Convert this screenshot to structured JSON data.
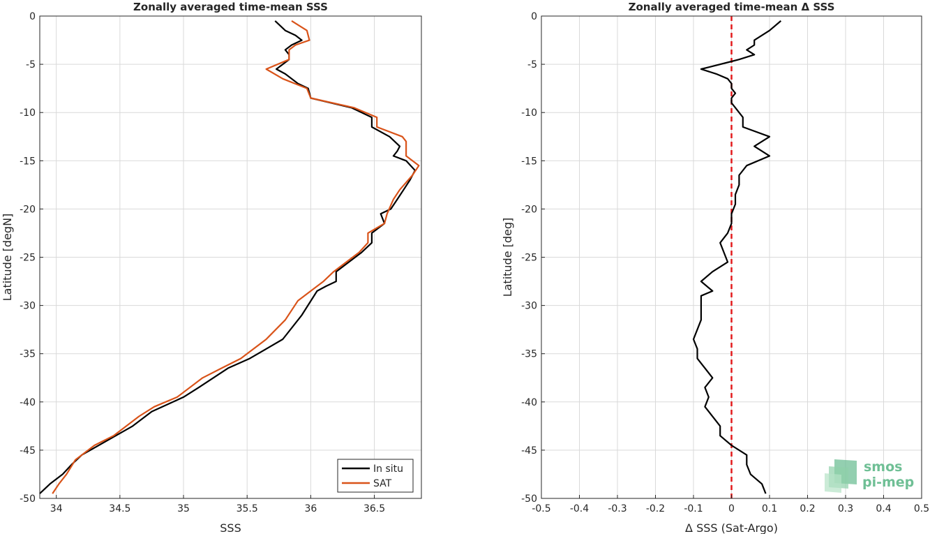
{
  "chart_data": [
    {
      "type": "line",
      "title": "Zonally averaged time-mean SSS",
      "xlabel": "SSS",
      "ylabel": "Latitude [degN]",
      "xlim": [
        33.87,
        36.87
      ],
      "ylim": [
        -50,
        0
      ],
      "xticks": [
        34,
        34.5,
        35,
        35.5,
        36,
        36.5
      ],
      "xtick_labels": [
        "34",
        "34.5",
        "35",
        "35.5",
        "36",
        "36.5"
      ],
      "yticks": [
        0,
        -5,
        -10,
        -15,
        -20,
        -25,
        -30,
        -35,
        -40,
        -45,
        -50
      ],
      "ytick_labels": [
        "0",
        "-5",
        "-10",
        "-15",
        "-20",
        "-25",
        "-30",
        "-35",
        "-40",
        "-45",
        "-50"
      ],
      "grid": true,
      "legend": "bottom-right",
      "series": [
        {
          "name": "In situ",
          "color": "#000000",
          "points": [
            [
              35.72,
              -0.5
            ],
            [
              35.8,
              -1.5
            ],
            [
              35.88,
              -2
            ],
            [
              35.93,
              -2.5
            ],
            [
              35.85,
              -3
            ],
            [
              35.8,
              -3.5
            ],
            [
              35.83,
              -4
            ],
            [
              35.83,
              -4.5
            ],
            [
              35.78,
              -5
            ],
            [
              35.73,
              -5.5
            ],
            [
              35.8,
              -6
            ],
            [
              35.9,
              -7
            ],
            [
              35.98,
              -7.5
            ],
            [
              36.0,
              -8.5
            ],
            [
              36.32,
              -9.5
            ],
            [
              36.48,
              -10.5
            ],
            [
              36.48,
              -11.5
            ],
            [
              36.62,
              -12.5
            ],
            [
              36.7,
              -13.5
            ],
            [
              36.68,
              -14
            ],
            [
              36.65,
              -14.5
            ],
            [
              36.75,
              -15
            ],
            [
              36.82,
              -16
            ],
            [
              36.78,
              -17
            ],
            [
              36.73,
              -18
            ],
            [
              36.68,
              -19
            ],
            [
              36.63,
              -20
            ],
            [
              36.55,
              -20.5
            ],
            [
              36.58,
              -21.5
            ],
            [
              36.48,
              -22.5
            ],
            [
              36.48,
              -23.5
            ],
            [
              36.4,
              -24.5
            ],
            [
              36.3,
              -25.5
            ],
            [
              36.2,
              -26.5
            ],
            [
              36.2,
              -27.5
            ],
            [
              36.12,
              -28
            ],
            [
              36.05,
              -28.5
            ],
            [
              35.93,
              -31
            ],
            [
              35.78,
              -33.5
            ],
            [
              35.65,
              -34.5
            ],
            [
              35.52,
              -35.5
            ],
            [
              35.35,
              -36.5
            ],
            [
              35.12,
              -38.5
            ],
            [
              35.0,
              -39.5
            ],
            [
              34.75,
              -41
            ],
            [
              34.6,
              -42.5
            ],
            [
              34.2,
              -45.5
            ],
            [
              34.12,
              -46.5
            ],
            [
              34.05,
              -47.5
            ],
            [
              33.95,
              -48.5
            ],
            [
              33.87,
              -49.5
            ]
          ]
        },
        {
          "name": "SAT",
          "color": "#d95319",
          "points": [
            [
              35.85,
              -0.5
            ],
            [
              35.97,
              -1.5
            ],
            [
              35.99,
              -2.5
            ],
            [
              35.88,
              -3
            ],
            [
              35.83,
              -3.5
            ],
            [
              35.83,
              -4.5
            ],
            [
              35.65,
              -5.5
            ],
            [
              35.78,
              -6.5
            ],
            [
              35.97,
              -7.5
            ],
            [
              36.0,
              -8.5
            ],
            [
              36.34,
              -9.5
            ],
            [
              36.52,
              -10.5
            ],
            [
              36.52,
              -11.5
            ],
            [
              36.72,
              -12.5
            ],
            [
              36.75,
              -13
            ],
            [
              36.75,
              -14.5
            ],
            [
              36.85,
              -15.5
            ],
            [
              36.8,
              -16.5
            ],
            [
              36.7,
              -18
            ],
            [
              36.65,
              -19
            ],
            [
              36.6,
              -20.5
            ],
            [
              36.58,
              -21.5
            ],
            [
              36.45,
              -22.5
            ],
            [
              36.45,
              -23.5
            ],
            [
              36.38,
              -24.5
            ],
            [
              36.18,
              -26.5
            ],
            [
              36.1,
              -27.5
            ],
            [
              36.0,
              -28.5
            ],
            [
              35.9,
              -29.5
            ],
            [
              35.8,
              -31.5
            ],
            [
              35.65,
              -33.5
            ],
            [
              35.45,
              -35.5
            ],
            [
              35.3,
              -36.5
            ],
            [
              35.15,
              -37.5
            ],
            [
              34.95,
              -39.5
            ],
            [
              34.77,
              -40.5
            ],
            [
              34.65,
              -41.5
            ],
            [
              34.45,
              -43.5
            ],
            [
              34.3,
              -44.5
            ],
            [
              34.15,
              -46
            ],
            [
              34.08,
              -47.5
            ],
            [
              34.02,
              -48.5
            ],
            [
              33.97,
              -49.5
            ]
          ]
        }
      ]
    },
    {
      "type": "line",
      "title": "Zonally averaged time-mean Δ SSS",
      "xlabel": "Δ SSS (Sat-Argo)",
      "ylabel": "Latitude [deg]",
      "xlim": [
        -0.5,
        0.5
      ],
      "ylim": [
        -50,
        0
      ],
      "xticks": [
        -0.5,
        -0.4,
        -0.3,
        -0.2,
        -0.1,
        0,
        0.1,
        0.2,
        0.3,
        0.4,
        0.5
      ],
      "xtick_labels": [
        "-0.5",
        "-0.4",
        "-0.3",
        "-0.2",
        "-0.1",
        "0",
        "0.1",
        "0.2",
        "0.3",
        "0.4",
        "0.5"
      ],
      "yticks": [
        0,
        -5,
        -10,
        -15,
        -20,
        -25,
        -30,
        -35,
        -40,
        -45,
        -50
      ],
      "ytick_labels": [
        "0",
        "-5",
        "-10",
        "-15",
        "-20",
        "-25",
        "-30",
        "-35",
        "-40",
        "-45",
        "-50"
      ],
      "grid": true,
      "reference_line": {
        "x": 0,
        "color": "#e31a1c",
        "style": "dashed"
      },
      "series": [
        {
          "color": "#000000",
          "points": [
            [
              0.13,
              -0.5
            ],
            [
              0.1,
              -1.5
            ],
            [
              0.06,
              -2.5
            ],
            [
              0.06,
              -3
            ],
            [
              0.04,
              -3.5
            ],
            [
              0.06,
              -4
            ],
            [
              0.02,
              -4.5
            ],
            [
              0.0,
              -4.7
            ],
            [
              -0.08,
              -5.5
            ],
            [
              -0.04,
              -6
            ],
            [
              -0.01,
              -6.5
            ],
            [
              0.0,
              -7
            ],
            [
              0.0,
              -7.5
            ],
            [
              0.01,
              -8
            ],
            [
              0.0,
              -8.5
            ],
            [
              0.0,
              -9
            ],
            [
              0.01,
              -9.5
            ],
            [
              0.03,
              -10.5
            ],
            [
              0.03,
              -11.5
            ],
            [
              0.1,
              -12.5
            ],
            [
              0.06,
              -13.5
            ],
            [
              0.1,
              -14.5
            ],
            [
              0.04,
              -15.5
            ],
            [
              0.02,
              -16.5
            ],
            [
              0.02,
              -17.5
            ],
            [
              0.01,
              -18.5
            ],
            [
              0.01,
              -19.5
            ],
            [
              0.0,
              -20.5
            ],
            [
              0.0,
              -21.5
            ],
            [
              -0.01,
              -22.5
            ],
            [
              -0.03,
              -23.5
            ],
            [
              -0.02,
              -24.5
            ],
            [
              -0.01,
              -25.5
            ],
            [
              -0.05,
              -26.5
            ],
            [
              -0.08,
              -27.5
            ],
            [
              -0.05,
              -28.5
            ],
            [
              -0.08,
              -29
            ],
            [
              -0.08,
              -31.5
            ],
            [
              -0.1,
              -33.5
            ],
            [
              -0.09,
              -34.5
            ],
            [
              -0.09,
              -35.5
            ],
            [
              -0.05,
              -37.5
            ],
            [
              -0.07,
              -38.5
            ],
            [
              -0.06,
              -39.5
            ],
            [
              -0.07,
              -40.5
            ],
            [
              -0.03,
              -42.5
            ],
            [
              -0.03,
              -43.5
            ],
            [
              0.0,
              -44.5
            ],
            [
              0.04,
              -45.5
            ],
            [
              0.04,
              -46.5
            ],
            [
              0.05,
              -47.5
            ],
            [
              0.08,
              -48.5
            ],
            [
              0.09,
              -49.5
            ]
          ]
        }
      ]
    }
  ],
  "legend": {
    "entries": [
      {
        "label": "In situ",
        "color": "#000000"
      },
      {
        "label": "SAT",
        "color": "#d95319"
      }
    ]
  },
  "logo": {
    "line1": "smos",
    "line2": "pi-mep"
  }
}
